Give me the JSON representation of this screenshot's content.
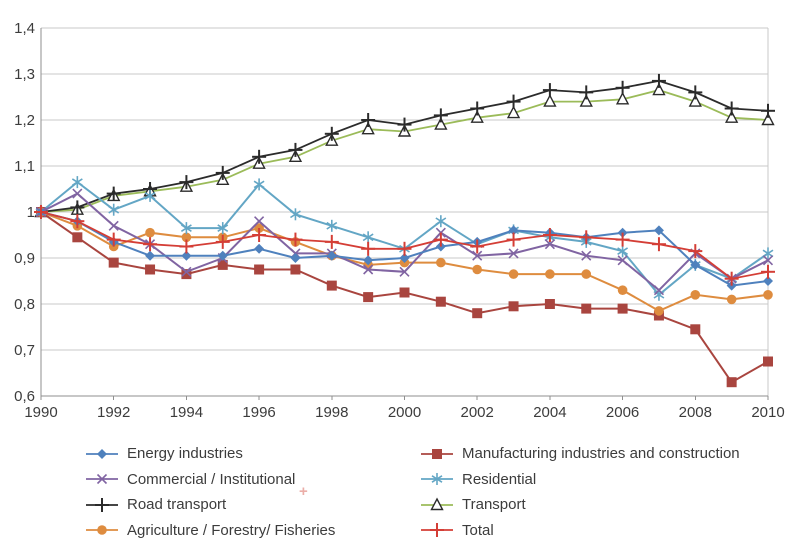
{
  "chart_data": {
    "type": "line",
    "title": "",
    "xlabel": "",
    "ylabel": "",
    "x": [
      1990,
      1991,
      1992,
      1993,
      1994,
      1995,
      1996,
      1997,
      1998,
      1999,
      2000,
      2001,
      2002,
      2003,
      2004,
      2005,
      2006,
      2007,
      2008,
      2009,
      2010
    ],
    "x_tick_labels": [
      "1990",
      "1992",
      "1994",
      "1996",
      "1998",
      "2000",
      "2002",
      "2004",
      "2006",
      "2008",
      "2010"
    ],
    "y_ticks": [
      1.4,
      1.3,
      1.2,
      1.1,
      1.0,
      0.9,
      0.8,
      0.7,
      0.6
    ],
    "y_tick_labels": [
      "1,4",
      "1,3",
      "1,2",
      "1,1",
      "1",
      "0,9",
      "0,8",
      "0,7",
      "0,6"
    ],
    "ylim": [
      0.6,
      1.4
    ],
    "xlim": [
      1990,
      2010
    ],
    "grid": "horizontal",
    "legend_position": "bottom-two-columns",
    "colors": {
      "grid": "#c9c9c9",
      "axis": "#8f8f8f",
      "text": "#3c3c3c",
      "background": "#ffffff"
    },
    "series": [
      {
        "name": "Energy industries",
        "color": "#4f81bd",
        "marker": "diamond",
        "legend_column": 1,
        "values": [
          1.0,
          0.98,
          0.935,
          0.905,
          0.905,
          0.905,
          0.92,
          0.9,
          0.905,
          0.895,
          0.9,
          0.925,
          0.935,
          0.96,
          0.955,
          0.945,
          0.955,
          0.96,
          0.885,
          0.84,
          0.85
        ]
      },
      {
        "name": "Manufacturing industries and construction",
        "color": "#a9453f",
        "marker": "square",
        "legend_column": 2,
        "values": [
          1.0,
          0.945,
          0.89,
          0.875,
          0.865,
          0.885,
          0.875,
          0.875,
          0.84,
          0.815,
          0.825,
          0.805,
          0.78,
          0.795,
          0.8,
          0.79,
          0.79,
          0.775,
          0.745,
          0.63,
          0.675
        ]
      },
      {
        "name": "Commercial / Institutional",
        "color": "#8064a2",
        "marker": "x",
        "legend_column": 1,
        "values": [
          1.0,
          1.04,
          0.97,
          0.93,
          0.87,
          0.9,
          0.98,
          0.91,
          0.91,
          0.875,
          0.87,
          0.955,
          0.905,
          0.91,
          0.93,
          0.905,
          0.895,
          0.83,
          0.91,
          0.855,
          0.895
        ]
      },
      {
        "name": "Residential",
        "color": "#63a6c5",
        "marker": "asterisk",
        "legend_column": 2,
        "values": [
          1.0,
          1.065,
          1.005,
          1.035,
          0.965,
          0.965,
          1.06,
          0.995,
          0.97,
          0.945,
          0.92,
          0.98,
          0.93,
          0.96,
          0.945,
          0.935,
          0.915,
          0.82,
          0.885,
          0.855,
          0.91
        ]
      },
      {
        "name": "Road transport",
        "color": "#2b2b2b",
        "marker": "plus",
        "legend_column": 1,
        "values": [
          1.0,
          1.01,
          1.04,
          1.05,
          1.065,
          1.085,
          1.12,
          1.135,
          1.17,
          1.2,
          1.19,
          1.21,
          1.225,
          1.24,
          1.265,
          1.26,
          1.27,
          1.285,
          1.26,
          1.225,
          1.22
        ]
      },
      {
        "name": "Transport",
        "color": "#9bbb59",
        "marker": "triangle-open",
        "marker_color": "#2b2b2b",
        "legend_column": 2,
        "values": [
          1.0,
          1.005,
          1.035,
          1.045,
          1.055,
          1.07,
          1.105,
          1.12,
          1.155,
          1.18,
          1.175,
          1.19,
          1.205,
          1.215,
          1.24,
          1.24,
          1.245,
          1.265,
          1.24,
          1.205,
          1.2
        ]
      },
      {
        "name": "Agriculture / Forestry/ Fisheries",
        "color": "#de8c3f",
        "marker": "circle",
        "legend_column": 1,
        "values": [
          1.0,
          0.97,
          0.925,
          0.955,
          0.945,
          0.945,
          0.965,
          0.935,
          0.905,
          0.885,
          0.89,
          0.89,
          0.875,
          0.865,
          0.865,
          0.865,
          0.83,
          0.785,
          0.82,
          0.81,
          0.82
        ]
      },
      {
        "name": "Total",
        "color": "#d43e36",
        "marker": "plus",
        "legend_column": 2,
        "values": [
          1.0,
          0.98,
          0.94,
          0.93,
          0.925,
          0.935,
          0.95,
          0.94,
          0.935,
          0.92,
          0.92,
          0.94,
          0.925,
          0.94,
          0.95,
          0.945,
          0.94,
          0.93,
          0.915,
          0.855,
          0.87
        ]
      }
    ]
  },
  "artifact": {
    "stray_plus": "+"
  }
}
